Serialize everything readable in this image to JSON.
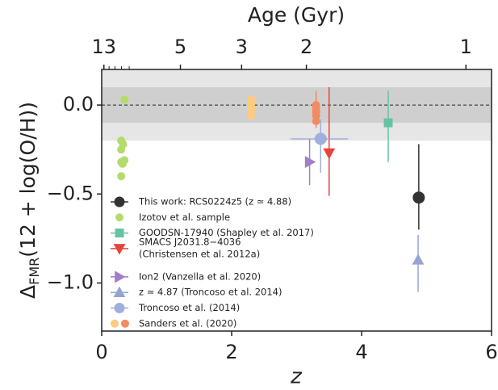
{
  "chart_data": {
    "type": "scatter",
    "xlabel": "z",
    "ylabel": [
      "Δ",
      "FMR",
      "(12 + log(O/H))"
    ],
    "x2label": "Age (Gyr)",
    "xlim": [
      0,
      6
    ],
    "ylim": [
      -1.27,
      0.2
    ],
    "xticks": [
      0,
      2,
      4,
      6
    ],
    "yticks": [
      {
        "value": 0,
        "label": "0.0"
      },
      {
        "value": -0.5,
        "label": "−0.5"
      },
      {
        "value": -1,
        "label": "−1.0"
      }
    ],
    "x2ticks": [
      13,
      5,
      3,
      2,
      1
    ],
    "x2minor": [
      12,
      11,
      10,
      9
    ],
    "reference_line": 0,
    "bands": [
      {
        "lower": -0.2,
        "upper": 0.2,
        "color": "#e6e6e6"
      },
      {
        "lower": -0.1,
        "upper": 0.1,
        "color": "#cfcfcf"
      }
    ],
    "legend": "lower left",
    "series": [
      {
        "name": "This work: RCS0224z5 (z ≃ 4.88)",
        "color": "#333333",
        "marker": "circle",
        "size": 7,
        "x": [
          4.88
        ],
        "values": [
          -0.52
        ],
        "yerr_lower": [
          0.18
        ],
        "yerr_upper": [
          0.3
        ]
      },
      {
        "name": "Izotov et al. sample",
        "color": "#b3dc6c",
        "marker": "circle",
        "size": 4.5,
        "x": [
          0.35,
          0.3,
          0.33,
          0.3,
          0.35,
          0.3,
          0.32,
          0.3
        ],
        "values": [
          0.03,
          -0.2,
          -0.22,
          -0.25,
          -0.31,
          -0.32,
          -0.33,
          -0.4
        ]
      },
      {
        "name": "GOODSN-17940 (Shapley et al. 2017)",
        "color": "#66c2a5",
        "marker": "square",
        "size": 5,
        "x": [
          4.41
        ],
        "values": [
          -0.1
        ],
        "yerr_lower": [
          0.22
        ],
        "yerr_upper": [
          0.18
        ]
      },
      {
        "name": [
          "SMACS J2031.8−4036",
          "(Christensen et al. 2012a)"
        ],
        "color": "#e8443a",
        "marker": "triangle-down",
        "size": 6,
        "x": [
          3.5
        ],
        "values": [
          -0.27
        ],
        "yerr_lower": [
          0.24
        ],
        "yerr_upper": [
          0.37
        ]
      },
      {
        "name": "Ion2 (Vanzella et al. 2020)",
        "color": "#9f7fc6",
        "marker": "triangle-right",
        "size": 6,
        "x": [
          3.2
        ],
        "values": [
          -0.32
        ],
        "yerr_lower": [
          0.13
        ],
        "yerr_upper": [
          0.13
        ]
      },
      {
        "name": "z ≃ 4.87 (Troncoso et al. 2014)",
        "color": "#95a5d3",
        "marker": "triangle-up",
        "size": 6,
        "x": [
          4.87
        ],
        "values": [
          -0.87
        ],
        "yerr_lower": [
          0.18
        ],
        "yerr_upper": [
          0.14
        ]
      },
      {
        "name": "Troncoso et al. (2014)",
        "color": "#9fb0dc",
        "marker": "circle",
        "size": 7,
        "x": [
          3.37
        ],
        "values": [
          -0.19
        ],
        "yerr_lower": [
          0.19
        ],
        "yerr_upper": [
          0.11
        ],
        "xerr_lower": [
          0.46
        ],
        "xerr_upper": [
          0.42
        ]
      },
      {
        "name": "Sanders et al. (2020)",
        "color": "#fdcb80",
        "marker": "circle",
        "size": 4.5,
        "x": [
          2.3,
          2.3,
          2.3,
          2.3,
          2.3
        ],
        "values": [
          0.03,
          0.01,
          -0.01,
          -0.03,
          -0.06
        ]
      },
      {
        "color": "#f28b62",
        "marker": "circle",
        "size": 4.5,
        "x": [
          3.3,
          3.3,
          3.3,
          3.3,
          3.3
        ],
        "values": [
          0.0,
          -0.02,
          -0.04,
          -0.06,
          -0.09
        ],
        "yerr_lower": [
          0.04,
          0.04,
          0.04,
          0.04,
          0.04
        ],
        "yerr_upper": [
          0.08,
          0.06,
          0.05,
          0.04,
          0.04
        ]
      }
    ]
  }
}
